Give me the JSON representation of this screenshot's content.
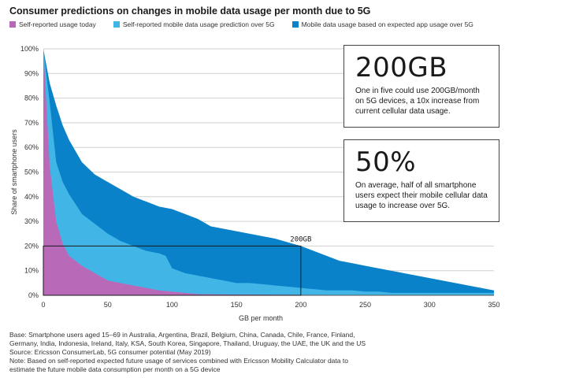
{
  "title": "Consumer predictions on changes in mobile data usage per month due to 5G",
  "legend": [
    {
      "label": "Self-reported usage today",
      "color": "#b86ab8"
    },
    {
      "label": "Self-reported mobile data usage prediction over 5G",
      "color": "#41b6e6"
    },
    {
      "label": "Mobile data usage based on expected app usage over 5G",
      "color": "#0a82c9"
    }
  ],
  "callouts": [
    {
      "big": "200GB",
      "text": "One in five could use 200GB/month on 5G devices, a 10x increase from current cellular data usage."
    },
    {
      "big": "50%",
      "text": "On average, half of all smartphone users expect their mobile cellular data usage to increase over 5G."
    }
  ],
  "notes": [
    "Base: Smartphone users aged 15–69 in Australia, Argentina, Brazil, Belgium, China, Canada, Chile, France, Finland,",
    "Germany, India, Indonesia, Ireland, Italy, KSA, South Korea, Singapore, Thailand, Uruguay, the UAE, the UK and the US",
    "Source: Ericsson ConsumerLab, 5G consumer potential (May 2019)",
    "Note: Based on self-reported expected future usage of services combined with Ericsson Mobility Calculator data to",
    "estimate the future mobile data consumption per month on a 5G device"
  ],
  "chart_data": {
    "type": "area",
    "xlabel": "GB per month",
    "ylabel": "Share of smartphone users",
    "xlim": [
      0,
      350
    ],
    "ylim": [
      0,
      100
    ],
    "xticks": [
      0,
      50,
      100,
      150,
      200,
      250,
      300,
      350
    ],
    "yticks": [
      "0%",
      "10%",
      "20%",
      "30%",
      "40%",
      "50%",
      "60%",
      "70%",
      "80%",
      "90%",
      "100%"
    ],
    "grid": "horizontal",
    "annotation": {
      "label": "200GB",
      "x": 200,
      "y": 20
    },
    "series": [
      {
        "name": "Mobile data usage based on expected app usage over 5G",
        "color": "#0a82c9",
        "x": [
          0,
          5,
          10,
          15,
          20,
          30,
          40,
          50,
          60,
          70,
          80,
          90,
          100,
          110,
          120,
          130,
          140,
          150,
          160,
          170,
          180,
          190,
          200,
          210,
          220,
          230,
          240,
          250,
          260,
          270,
          280,
          290,
          300,
          310,
          320,
          330,
          340,
          350
        ],
        "values": [
          100,
          86,
          77,
          69,
          63,
          54,
          49,
          46,
          43,
          40,
          38,
          36,
          35,
          33,
          31,
          28,
          27,
          26,
          25,
          24,
          23,
          21.5,
          20,
          18,
          16,
          14,
          13,
          12,
          11,
          10,
          9,
          8,
          7,
          6,
          5,
          4,
          3,
          2
        ]
      },
      {
        "name": "Self-reported mobile data usage prediction over 5G",
        "color": "#41b6e6",
        "x": [
          0,
          5,
          10,
          15,
          20,
          30,
          40,
          50,
          60,
          70,
          80,
          90,
          95,
          100,
          110,
          120,
          130,
          140,
          150,
          160,
          170,
          180,
          190,
          200,
          210,
          220,
          230,
          240,
          250,
          260,
          270,
          280,
          290,
          300,
          310,
          320,
          330,
          340,
          350
        ],
        "values": [
          100,
          78,
          54,
          46,
          41,
          33,
          29,
          25,
          22,
          20,
          18,
          17,
          16,
          11,
          9,
          8,
          7,
          6,
          5,
          5,
          4.5,
          4,
          3.5,
          3,
          2.5,
          2,
          2,
          2,
          1.5,
          1.5,
          1,
          1,
          1,
          1,
          1,
          1,
          1,
          1,
          1
        ]
      },
      {
        "name": "Self-reported usage today",
        "color": "#b86ab8",
        "x": [
          0,
          5,
          10,
          15,
          20,
          30,
          40,
          50,
          60,
          70,
          80,
          90,
          100,
          110,
          120,
          150,
          200,
          250,
          300,
          350
        ],
        "values": [
          100,
          52,
          30,
          21,
          16,
          12,
          9,
          6,
          5,
          4,
          3,
          2,
          1.5,
          1,
          0.5,
          0.3,
          0.2,
          0.1,
          0.1,
          0.1
        ]
      }
    ]
  }
}
